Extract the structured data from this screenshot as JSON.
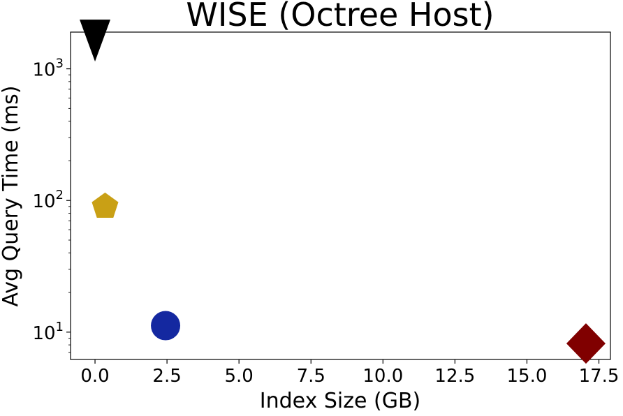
{
  "chart_data": {
    "type": "scatter",
    "title": "WISE (Octree Host)",
    "xlabel": "Index Size (GB)",
    "ylabel": "Avg Query Time (ms)",
    "xscale": "linear",
    "yscale": "log",
    "xlim": [
      -0.85,
      17.9
    ],
    "ylim": [
      6.2,
      1900
    ],
    "grid": false,
    "legend": "none",
    "x_ticks": [
      0.0,
      2.5,
      5.0,
      7.5,
      10.0,
      12.5,
      15.0,
      17.5
    ],
    "x_tick_labels": [
      "0.0",
      "2.5",
      "5.0",
      "7.5",
      "10.0",
      "12.5",
      "15.0",
      "17.5"
    ],
    "y_ticks": [
      {
        "value": 10,
        "base": "10",
        "exp": "1"
      },
      {
        "value": 100,
        "base": "10",
        "exp": "2"
      },
      {
        "value": 1000,
        "base": "10",
        "exp": "3"
      }
    ],
    "points": [
      {
        "x": 0.0,
        "y": 1450,
        "marker": "triangle-down",
        "color": "#000000"
      },
      {
        "x": 0.35,
        "y": 90,
        "marker": "pentagon",
        "color": "#c9a015"
      },
      {
        "x": 2.45,
        "y": 11.2,
        "marker": "circle",
        "color": "#1428a0"
      },
      {
        "x": 17.05,
        "y": 8.2,
        "marker": "diamond",
        "color": "#800000"
      }
    ]
  }
}
